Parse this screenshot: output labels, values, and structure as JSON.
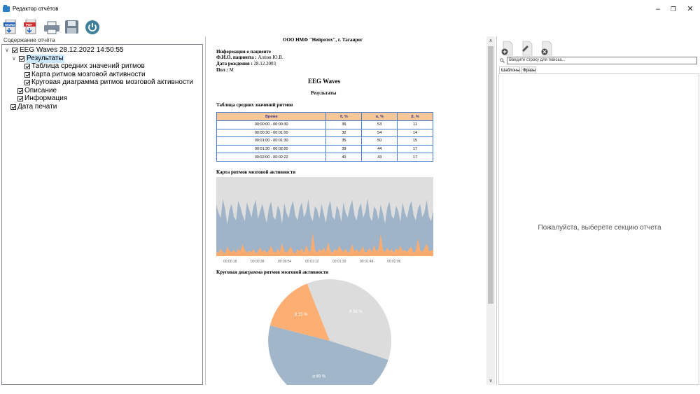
{
  "window": {
    "title": "Редактор отчётов"
  },
  "toolbar": {
    "icons": [
      "word-export-icon",
      "pdf-export-icon",
      "printer-icon",
      "floppy-disk-icon",
      "power-icon"
    ]
  },
  "tree": {
    "caption": "Содержание отчёта",
    "items": [
      {
        "label": "EEG Waves 28.12.2022 14:50:55",
        "level": 0,
        "expanded": true
      },
      {
        "label": "Результаты",
        "level": 1,
        "expanded": true,
        "selected": true
      },
      {
        "label": "Таблица средних значений ритмов",
        "level": 2
      },
      {
        "label": "Карта ритмов мозговой активности",
        "level": 2
      },
      {
        "label": "Круговая диаграмма ритмов мозговой активности",
        "level": 2
      },
      {
        "label": "Описание",
        "level": 1
      },
      {
        "label": "Информация",
        "level": 1
      },
      {
        "label": "Дата печати",
        "level": 0
      }
    ]
  },
  "document": {
    "org": "ООО НМФ \"Нейротех\", г. Таганрог",
    "patient_header": "Информация о пациенте",
    "name_label": "Ф.И.О. пациента :",
    "name_value": "Алпов Ю.В.",
    "dob_label": "Дата рождения :",
    "dob_value": "28.12.2003",
    "sex_label": "Пол :",
    "sex_value": "М",
    "title": "EEG Waves",
    "subtitle": "Результаты",
    "table_title": "Таблица средних значений ритмов",
    "map_title": "Карта ритмов мозговой активности",
    "pie_title": "Круговая диаграмма ритмов мозговой активности",
    "table": {
      "headers": [
        "Время",
        "θ, %",
        "α, %",
        "β, %"
      ],
      "rows": [
        [
          "00:00:00 - 00:00:30",
          "36",
          "53",
          "11"
        ],
        [
          "00:00:30 - 00:01:00",
          "32",
          "54",
          "14"
        ],
        [
          "00:01:00 - 00:01:30",
          "35",
          "50",
          "15"
        ],
        [
          "00:01:30 - 00:02:00",
          "39",
          "44",
          "17"
        ],
        [
          "00:02:00 - 00:02:22",
          "40",
          "43",
          "17"
        ]
      ]
    }
  },
  "chart_data": [
    {
      "type": "area",
      "x_ticks": [
        "00:00:18",
        "00:00:38",
        "00:00:54",
        "00:01:12",
        "00:01:30",
        "00:01:48",
        "00:02:06"
      ],
      "stacked": true,
      "ylim": [
        0,
        100
      ],
      "colors": {
        "beta": "#fdab6e",
        "alpha": "#9fb4c8",
        "theta": "#dedede"
      },
      "series_beta": [
        6,
        4,
        9,
        5,
        3,
        12,
        7,
        5,
        8,
        4,
        10,
        6,
        15,
        8,
        4,
        7,
        5,
        9,
        3,
        6,
        11,
        5,
        8,
        4,
        7,
        13,
        6,
        4,
        9,
        5,
        16,
        7,
        4,
        8,
        12,
        5,
        3,
        9,
        6,
        10,
        4,
        14,
        7,
        5,
        30,
        8,
        4,
        9,
        6,
        11,
        5,
        18,
        7,
        4,
        9,
        6,
        13,
        8,
        5,
        10,
        4,
        7,
        15,
        6,
        9,
        5,
        8,
        12,
        4,
        7,
        10,
        5,
        14,
        6,
        9,
        28,
        8,
        5,
        11,
        6,
        9,
        4,
        10,
        7,
        13,
        6,
        8,
        5,
        9,
        12,
        4,
        7,
        22,
        8,
        5,
        10,
        16,
        7,
        6,
        9
      ],
      "series_alpha_top": [
        65,
        55,
        48,
        72,
        60,
        40,
        58,
        66,
        50,
        45,
        70,
        62,
        52,
        44,
        68,
        59,
        49,
        63,
        71,
        47,
        57,
        66,
        53,
        42,
        61,
        69,
        50,
        46,
        64,
        58,
        41,
        67,
        55,
        48,
        62,
        70,
        52,
        45,
        60,
        68,
        49,
        56,
        72,
        51,
        44,
        63,
        59,
        47,
        66,
        54,
        42,
        61,
        70,
        50,
        46,
        64,
        57,
        43,
        68,
        55,
        49,
        62,
        71,
        52,
        45,
        60,
        67,
        48,
        56,
        73,
        50,
        44,
        63,
        58,
        46,
        65,
        54,
        41,
        61,
        69,
        51,
        47,
        64,
        57,
        43,
        68,
        55,
        48,
        62,
        70,
        52,
        45,
        60,
        66,
        49,
        56,
        71,
        50,
        44,
        58
      ]
    },
    {
      "type": "pie",
      "series": [
        {
          "name": "θ",
          "label": "θ 36 %",
          "value": 36,
          "color": "#dcdcdc"
        },
        {
          "name": "α",
          "label": "α 49 %",
          "value": 49,
          "color": "#a2b6c9"
        },
        {
          "name": "β",
          "label": "β 15 %",
          "value": 15,
          "color": "#fdae73"
        }
      ]
    }
  ],
  "right_panel": {
    "search_placeholder": "Введите строку для поиска...",
    "tabs": [
      "Шаблоны",
      "Фразы"
    ],
    "message": "Пожалуйста, выберете секцию отчета"
  }
}
